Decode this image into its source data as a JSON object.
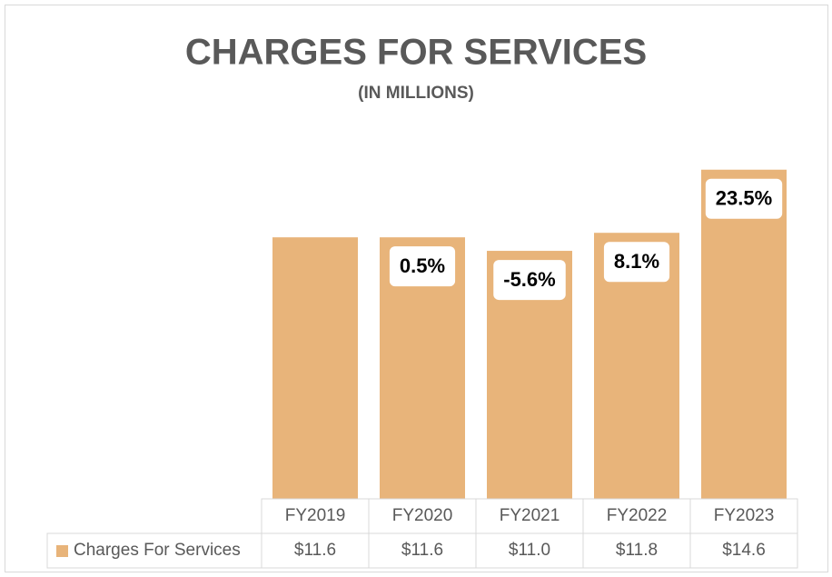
{
  "chart_data": {
    "type": "bar",
    "title": "CHARGES FOR SERVICES",
    "subtitle": "(IN MILLIONS)",
    "categories": [
      "FY2019",
      "FY2020",
      "FY2021",
      "FY2022",
      "FY2023"
    ],
    "series": [
      {
        "name": "Charges For Services",
        "color": "#e8b47a",
        "values": [
          11.6,
          11.6,
          11.0,
          11.8,
          14.6
        ],
        "value_labels": [
          "$11.6",
          "$11.6",
          "$11.0",
          "$11.8",
          "$14.6"
        ]
      }
    ],
    "annotations": [
      null,
      "0.5%",
      "-5.6%",
      "8.1%",
      "23.5%"
    ],
    "ylim": [
      0,
      16
    ]
  }
}
